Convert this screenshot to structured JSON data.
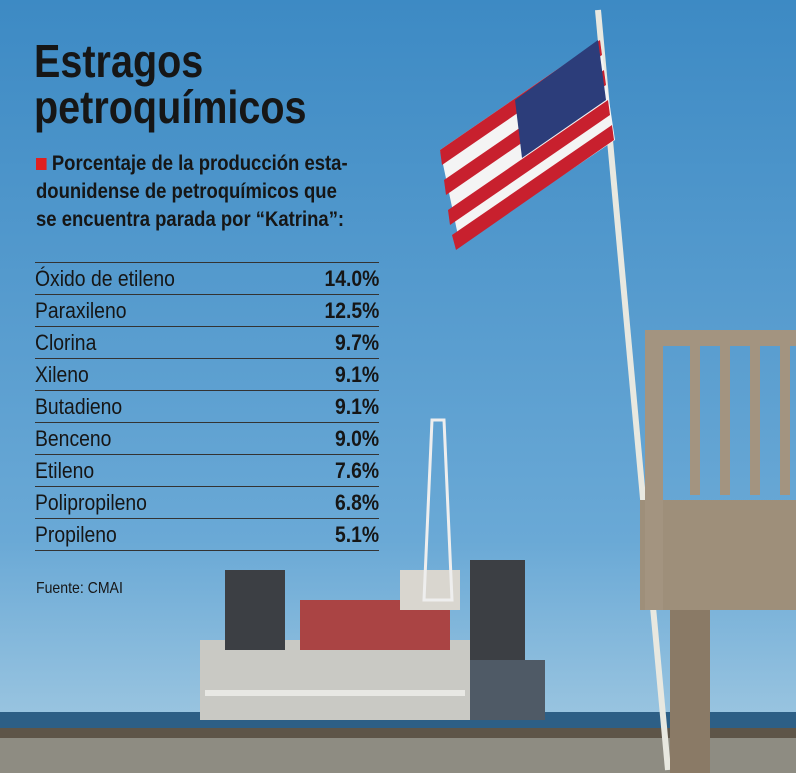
{
  "header": {
    "title_lines": [
      "Estragos",
      "petroquímicos"
    ],
    "subtitle_lines": [
      "Porcentaje de la producción esta-",
      "dounidense de petroquímicos que",
      "se encuentra parada por “Katrina”:"
    ]
  },
  "table": {
    "rows": [
      [
        "Óxido de etileno",
        "14.0%"
      ],
      [
        "Paraxileno",
        "12.5%"
      ],
      [
        "Clorina",
        "9.7%"
      ],
      [
        "Xileno",
        "9.1%"
      ],
      [
        "Butadieno",
        "9.1%"
      ],
      [
        "Benceno",
        "9.0%"
      ],
      [
        "Etileno",
        "7.6%"
      ],
      [
        "Polipropileno",
        "6.8%"
      ],
      [
        "Propileno",
        "5.1%"
      ]
    ]
  },
  "footer": {
    "source": "Fuente: CMAI"
  }
}
